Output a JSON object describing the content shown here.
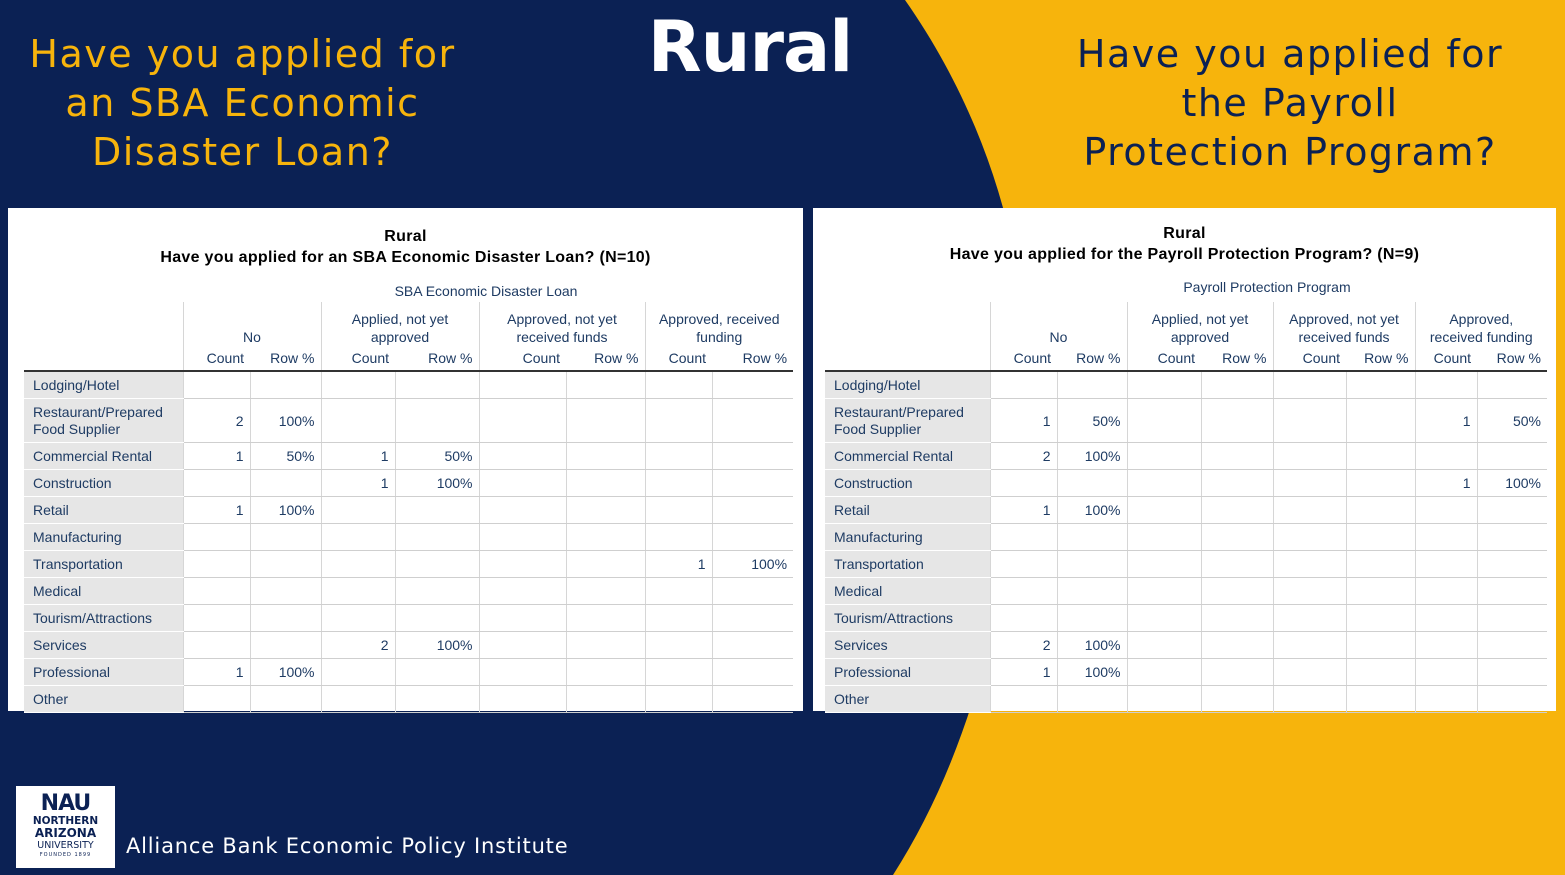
{
  "slide": {
    "title": "Rural",
    "left_question": [
      "Have you applied for",
      "an SBA Economic",
      "Disaster Loan?"
    ],
    "right_question": [
      "Have you applied for",
      "the Payroll",
      "Protection Program?"
    ],
    "colors": {
      "navy": "#0b2154",
      "gold": "#f7b40c",
      "white": "#ffffff"
    }
  },
  "left_table": {
    "title": "Rural",
    "subtitle": "Have you applied for an SBA Economic Disaster Loan? (N=10)",
    "variable_label": "SBA Economic Disaster Loan",
    "groups": [
      [
        "No"
      ],
      [
        "Applied, not yet",
        "approved"
      ],
      [
        "Approved, not yet",
        "received funds"
      ],
      [
        "Approved, received",
        "funding"
      ]
    ],
    "subheaders": [
      "Count",
      "Row %",
      "Count",
      "Row %",
      "Count",
      "Row %",
      "Count",
      "Row %"
    ],
    "rows": [
      {
        "label": [
          "Lodging/Hotel"
        ],
        "cells": [
          "",
          "",
          "",
          "",
          "",
          "",
          "",
          ""
        ]
      },
      {
        "label": [
          "Restaurant/Prepared",
          "Food Supplier"
        ],
        "cells": [
          "2",
          "100%",
          "",
          "",
          "",
          "",
          "",
          ""
        ]
      },
      {
        "label": [
          "Commercial Rental"
        ],
        "cells": [
          "1",
          "50%",
          "1",
          "50%",
          "",
          "",
          "",
          ""
        ]
      },
      {
        "label": [
          "Construction"
        ],
        "cells": [
          "",
          "",
          "1",
          "100%",
          "",
          "",
          "",
          ""
        ]
      },
      {
        "label": [
          "Retail"
        ],
        "cells": [
          "1",
          "100%",
          "",
          "",
          "",
          "",
          "",
          ""
        ]
      },
      {
        "label": [
          "Manufacturing"
        ],
        "cells": [
          "",
          "",
          "",
          "",
          "",
          "",
          "",
          ""
        ]
      },
      {
        "label": [
          "Transportation"
        ],
        "cells": [
          "",
          "",
          "",
          "",
          "",
          "",
          "1",
          "100%"
        ]
      },
      {
        "label": [
          "Medical"
        ],
        "cells": [
          "",
          "",
          "",
          "",
          "",
          "",
          "",
          ""
        ]
      },
      {
        "label": [
          "Tourism/Attractions"
        ],
        "cells": [
          "",
          "",
          "",
          "",
          "",
          "",
          "",
          ""
        ]
      },
      {
        "label": [
          "Services"
        ],
        "cells": [
          "",
          "",
          "2",
          "100%",
          "",
          "",
          "",
          ""
        ]
      },
      {
        "label": [
          "Professional"
        ],
        "cells": [
          "1",
          "100%",
          "",
          "",
          "",
          "",
          "",
          ""
        ]
      },
      {
        "label": [
          "Other"
        ],
        "cells": [
          "",
          "",
          "",
          "",
          "",
          "",
          "",
          ""
        ]
      }
    ]
  },
  "right_table": {
    "title": "Rural",
    "subtitle": "Have you applied for the Payroll Protection Program? (N=9)",
    "variable_label": "Payroll Protection Program",
    "groups": [
      [
        "No"
      ],
      [
        "Applied, not yet",
        "approved"
      ],
      [
        "Approved, not yet",
        "received funds"
      ],
      [
        "Approved,",
        "received funding"
      ]
    ],
    "subheaders": [
      "Count",
      "Row %",
      "Count",
      "Row %",
      "Count",
      "Row %",
      "Count",
      "Row %"
    ],
    "rows": [
      {
        "label": [
          "Lodging/Hotel"
        ],
        "cells": [
          "",
          "",
          "",
          "",
          "",
          "",
          "",
          ""
        ]
      },
      {
        "label": [
          "Restaurant/Prepared",
          "Food Supplier"
        ],
        "cells": [
          "1",
          "50%",
          "",
          "",
          "",
          "",
          "1",
          "50%"
        ]
      },
      {
        "label": [
          "Commercial Rental"
        ],
        "cells": [
          "2",
          "100%",
          "",
          "",
          "",
          "",
          "",
          ""
        ]
      },
      {
        "label": [
          "Construction"
        ],
        "cells": [
          "",
          "",
          "",
          "",
          "",
          "",
          "1",
          "100%"
        ]
      },
      {
        "label": [
          "Retail"
        ],
        "cells": [
          "1",
          "100%",
          "",
          "",
          "",
          "",
          "",
          ""
        ]
      },
      {
        "label": [
          "Manufacturing"
        ],
        "cells": [
          "",
          "",
          "",
          "",
          "",
          "",
          "",
          ""
        ]
      },
      {
        "label": [
          "Transportation"
        ],
        "cells": [
          "",
          "",
          "",
          "",
          "",
          "",
          "",
          ""
        ]
      },
      {
        "label": [
          "Medical"
        ],
        "cells": [
          "",
          "",
          "",
          "",
          "",
          "",
          "",
          ""
        ]
      },
      {
        "label": [
          "Tourism/Attractions"
        ],
        "cells": [
          "",
          "",
          "",
          "",
          "",
          "",
          "",
          ""
        ]
      },
      {
        "label": [
          "Services"
        ],
        "cells": [
          "2",
          "100%",
          "",
          "",
          "",
          "",
          "",
          ""
        ]
      },
      {
        "label": [
          "Professional"
        ],
        "cells": [
          "1",
          "100%",
          "",
          "",
          "",
          "",
          "",
          ""
        ]
      },
      {
        "label": [
          "Other"
        ],
        "cells": [
          "",
          "",
          "",
          "",
          "",
          "",
          "",
          ""
        ]
      }
    ]
  },
  "footer": {
    "logo_text": [
      "NAU",
      "NORTHERN",
      "ARIZONA",
      "UNIVERSITY",
      "FOUNDED 1899"
    ],
    "institute": "Alliance Bank Economic Policy Institute"
  }
}
